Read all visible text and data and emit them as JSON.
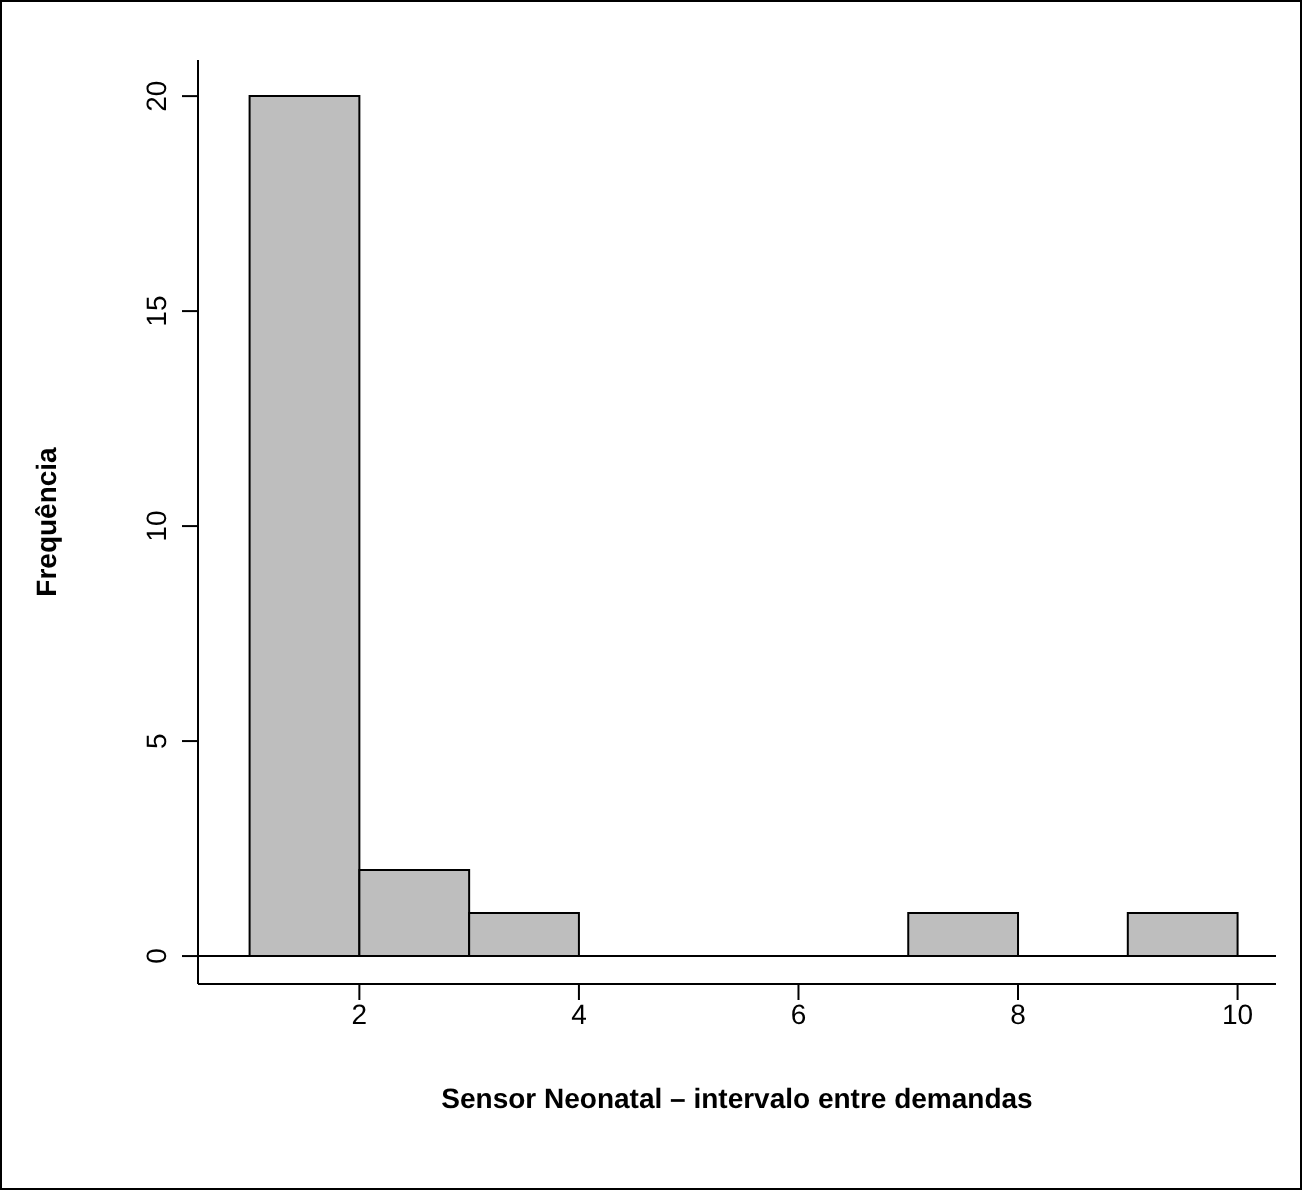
{
  "chart_data": {
    "type": "histogram",
    "xlabel": "Sensor Neonatal – intervalo entre demandas",
    "ylabel": "Frequência",
    "bins": [
      1,
      2,
      3,
      4,
      5,
      6,
      7,
      8,
      9,
      10
    ],
    "values": [
      20,
      2,
      1,
      0,
      0,
      0,
      1,
      0,
      1
    ],
    "color": "#bebebe",
    "xlim": [
      0.53,
      10.35
    ],
    "xticks": [
      2,
      4,
      6,
      8,
      10
    ],
    "ylim": [
      -0.65,
      20.84
    ],
    "yticks": [
      0,
      5,
      10,
      15,
      20
    ],
    "ref_lines": [
      {
        "axis": "y",
        "value": 0
      }
    ],
    "grid": false
  }
}
